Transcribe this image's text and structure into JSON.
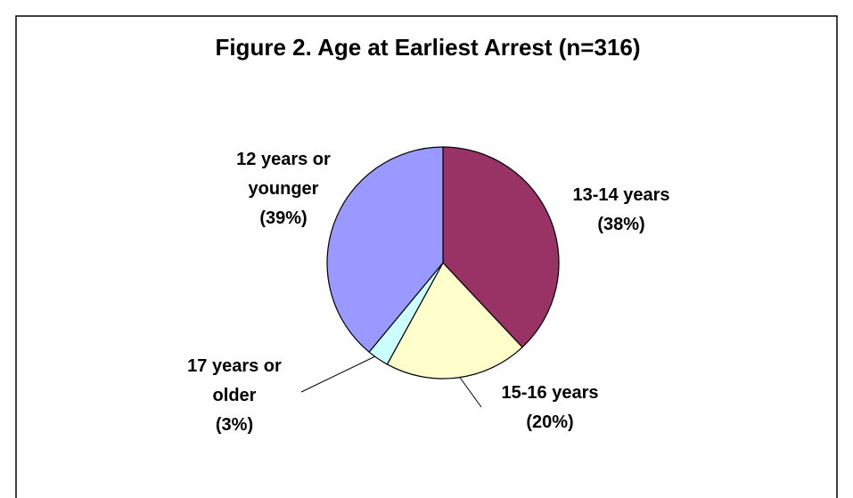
{
  "chart_data": {
    "type": "pie",
    "title": "Figure 2.  Age at Earliest Arrest (n=316)",
    "categories": [
      "13-14 years",
      "15-16 years",
      "17 years or older",
      "12 years or younger"
    ],
    "values": [
      38,
      20,
      3,
      39
    ],
    "value_labels": [
      "(38%)",
      "(20%)",
      "(3%)",
      "(39%)"
    ],
    "colors": [
      "#993366",
      "#ffffcc",
      "#ccffff",
      "#9999ff"
    ]
  }
}
